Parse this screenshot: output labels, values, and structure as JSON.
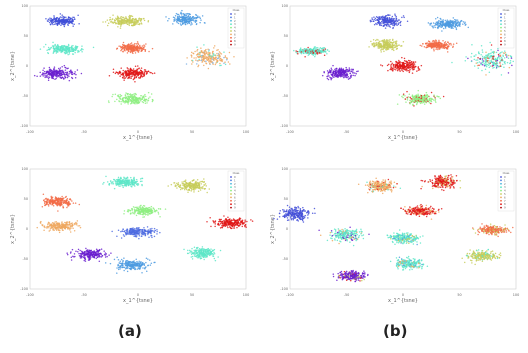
{
  "captions": {
    "a": "(a)",
    "b": "(b)"
  },
  "chart_data": [
    {
      "type": "scatter",
      "panel": "(a) top",
      "xlabel": "x_1^{tsne}",
      "ylabel": "x_2^{tsne}",
      "xlim": [
        -100,
        100
      ],
      "ylim": [
        -100,
        100
      ],
      "legend": {
        "title": "Class",
        "entries": [
          "0",
          "1",
          "2",
          "3",
          "4",
          "5",
          "6",
          "7",
          "8",
          "9"
        ],
        "placement": "top-right"
      },
      "grid": false,
      "clusters": [
        {
          "label": "0",
          "color": "#3f4fd8",
          "center": [
            -70,
            75
          ],
          "spread": [
            12,
            6
          ],
          "noise": []
        },
        {
          "label": "1",
          "color": "#c7cd5a",
          "center": [
            -10,
            75
          ],
          "spread": [
            14,
            6
          ],
          "noise": []
        },
        {
          "label": "2",
          "color": "#4d9be0",
          "center": [
            45,
            78
          ],
          "spread": [
            12,
            7
          ],
          "noise": []
        },
        {
          "label": "3",
          "color": "#5ee6c8",
          "center": [
            -68,
            28
          ],
          "spread": [
            13,
            6
          ],
          "noise": []
        },
        {
          "label": "4",
          "color": "#f26b47",
          "center": [
            -5,
            30
          ],
          "spread": [
            12,
            6
          ],
          "noise": []
        },
        {
          "label": "5",
          "color": "#eea860",
          "center": [
            65,
            15
          ],
          "spread": [
            15,
            12
          ],
          "noise": [
            "#7fb0e3",
            "#5ee6c8"
          ]
        },
        {
          "label": "6",
          "color": "#6a1ecf",
          "center": [
            -75,
            -12
          ],
          "spread": [
            14,
            7
          ],
          "noise": []
        },
        {
          "label": "7",
          "color": "#e01818",
          "center": [
            -5,
            -12
          ],
          "spread": [
            12,
            7
          ],
          "noise": []
        },
        {
          "label": "8",
          "color": "#8fef82",
          "center": [
            -5,
            -55
          ],
          "spread": [
            13,
            7
          ],
          "noise": []
        }
      ]
    },
    {
      "type": "scatter",
      "panel": "(b) top",
      "xlabel": "x_1^{tsne}",
      "ylabel": "x_2^{tsne}",
      "xlim": [
        -100,
        100
      ],
      "ylim": [
        -100,
        100
      ],
      "legend": {
        "title": "Class",
        "entries": [
          "0",
          "1",
          "2",
          "3",
          "4",
          "5",
          "6",
          "7",
          "8",
          "9"
        ],
        "placement": "top-right"
      },
      "grid": false,
      "clusters": [
        {
          "label": "0",
          "color": "#4450d8",
          "center": [
            -15,
            75
          ],
          "spread": [
            12,
            7
          ],
          "noise": []
        },
        {
          "label": "1",
          "color": "#4d9be0",
          "center": [
            40,
            70
          ],
          "spread": [
            13,
            6
          ],
          "noise": []
        },
        {
          "label": "2",
          "color": "#c7cd5a",
          "center": [
            -15,
            35
          ],
          "spread": [
            11,
            7
          ],
          "noise": []
        },
        {
          "label": "3",
          "color": "#f26b47",
          "center": [
            30,
            35
          ],
          "spread": [
            11,
            6
          ],
          "noise": []
        },
        {
          "label": "4",
          "color": "#5ee6c8",
          "center": [
            -80,
            25
          ],
          "spread": [
            12,
            5
          ],
          "noise": [
            "#e01818"
          ]
        },
        {
          "label": "5",
          "color": "#6a1ecf",
          "center": [
            -55,
            -12
          ],
          "spread": [
            12,
            7
          ],
          "noise": []
        },
        {
          "label": "6",
          "color": "#e01818",
          "center": [
            0,
            0
          ],
          "spread": [
            12,
            7
          ],
          "noise": []
        },
        {
          "label": "7",
          "color": "#5ee6c8",
          "center": [
            78,
            12
          ],
          "spread": [
            15,
            14
          ],
          "noise": [
            "#e01818",
            "#6a1ecf",
            "#eea860"
          ]
        },
        {
          "label": "8",
          "color": "#8fef82",
          "center": [
            15,
            -55
          ],
          "spread": [
            12,
            7
          ],
          "noise": [
            "#e01818"
          ]
        }
      ]
    },
    {
      "type": "scatter",
      "panel": "(a) bottom",
      "xlabel": "x_1^{tsne}",
      "ylabel": "x_2^{tsne}",
      "xlim": [
        -100,
        100
      ],
      "ylim": [
        -100,
        100
      ],
      "legend": {
        "title": "Class",
        "entries": [
          "0",
          "1",
          "2",
          "3",
          "4",
          "5",
          "6",
          "7",
          "8",
          "9"
        ],
        "placement": "top-right"
      },
      "grid": false,
      "clusters": [
        {
          "label": "0",
          "color": "#5ee6c8",
          "center": [
            -12,
            78
          ],
          "spread": [
            12,
            7
          ],
          "noise": []
        },
        {
          "label": "1",
          "color": "#c7cd5a",
          "center": [
            50,
            72
          ],
          "spread": [
            13,
            7
          ],
          "noise": []
        },
        {
          "label": "2",
          "color": "#f26b47",
          "center": [
            -75,
            45
          ],
          "spread": [
            13,
            7
          ],
          "noise": []
        },
        {
          "label": "3",
          "color": "#8fef82",
          "center": [
            5,
            30
          ],
          "spread": [
            12,
            6
          ],
          "noise": []
        },
        {
          "label": "4",
          "color": "#eea860",
          "center": [
            -72,
            5
          ],
          "spread": [
            14,
            6
          ],
          "noise": []
        },
        {
          "label": "5",
          "color": "#4d6be0",
          "center": [
            0,
            -5
          ],
          "spread": [
            14,
            6
          ],
          "noise": []
        },
        {
          "label": "6",
          "color": "#e01818",
          "center": [
            85,
            10
          ],
          "spread": [
            13,
            6
          ],
          "noise": []
        },
        {
          "label": "7",
          "color": "#6a1ecf",
          "center": [
            -45,
            -42
          ],
          "spread": [
            14,
            7
          ],
          "noise": []
        },
        {
          "label": "8",
          "color": "#4d9be0",
          "center": [
            -5,
            -60
          ],
          "spread": [
            13,
            7
          ],
          "noise": []
        },
        {
          "label": "9",
          "color": "#5ee6c8",
          "center": [
            60,
            -40
          ],
          "spread": [
            11,
            7
          ],
          "noise": []
        }
      ]
    },
    {
      "type": "scatter",
      "panel": "(b) bottom",
      "xlabel": "x_1^{tsne}",
      "ylabel": "x_2^{tsne}",
      "xlim": [
        -100,
        100
      ],
      "ylim": [
        -100,
        100
      ],
      "legend": {
        "title": "Class",
        "entries": [
          "0",
          "1",
          "2",
          "3",
          "4",
          "5",
          "6",
          "7",
          "8",
          "9"
        ],
        "placement": "top-right"
      },
      "grid": false,
      "clusters": [
        {
          "label": "0",
          "color": "#eea860",
          "center": [
            -20,
            72
          ],
          "spread": [
            11,
            8
          ],
          "noise": [
            "#5ee6c8",
            "#e01818"
          ]
        },
        {
          "label": "1",
          "color": "#e01818",
          "center": [
            35,
            78
          ],
          "spread": [
            11,
            9
          ],
          "noise": [
            "#eea860",
            "#c7cd5a"
          ]
        },
        {
          "label": "2",
          "color": "#4450d8",
          "center": [
            -95,
            25
          ],
          "spread": [
            12,
            9
          ],
          "noise": []
        },
        {
          "label": "3",
          "color": "#e01818",
          "center": [
            15,
            30
          ],
          "spread": [
            12,
            6
          ],
          "noise": [
            "#eea860"
          ]
        },
        {
          "label": "4",
          "color": "#5ee6c8",
          "center": [
            -50,
            -10
          ],
          "spread": [
            12,
            8
          ],
          "noise": [
            "#eea860",
            "#6a1ecf"
          ]
        },
        {
          "label": "5",
          "color": "#5ee6c8",
          "center": [
            0,
            -15
          ],
          "spread": [
            12,
            7
          ],
          "noise": [
            "#4d9be0",
            "#c7cd5a"
          ]
        },
        {
          "label": "6",
          "color": "#f26b47",
          "center": [
            80,
            -2
          ],
          "spread": [
            13,
            6
          ],
          "noise": [
            "#c7cd5a"
          ]
        },
        {
          "label": "7",
          "color": "#c7cd5a",
          "center": [
            70,
            -45
          ],
          "spread": [
            12,
            7
          ],
          "noise": [
            "#5ee6c8"
          ]
        },
        {
          "label": "8",
          "color": "#5ee6c8",
          "center": [
            5,
            -58
          ],
          "spread": [
            11,
            7
          ],
          "noise": [
            "#eea860",
            "#4d9be0"
          ]
        },
        {
          "label": "9",
          "color": "#6a1ecf",
          "center": [
            -45,
            -78
          ],
          "spread": [
            12,
            6
          ],
          "noise": [
            "#e01818",
            "#c7cd5a"
          ]
        }
      ]
    }
  ]
}
